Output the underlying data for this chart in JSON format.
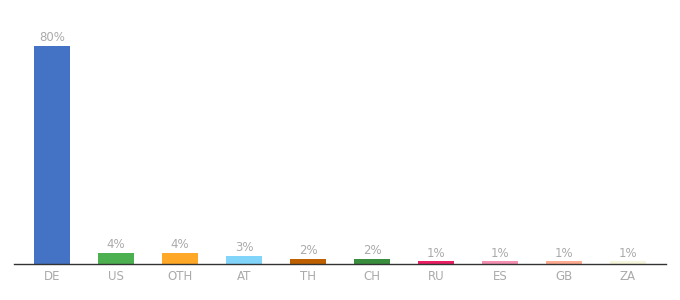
{
  "categories": [
    "DE",
    "US",
    "OTH",
    "AT",
    "TH",
    "CH",
    "RU",
    "ES",
    "GB",
    "ZA"
  ],
  "values": [
    80,
    4,
    4,
    3,
    2,
    2,
    1,
    1,
    1,
    1
  ],
  "bar_colors": [
    "#4472C4",
    "#4CAF50",
    "#FFA726",
    "#81D4FA",
    "#BF6000",
    "#388E3C",
    "#E91E63",
    "#F48FB1",
    "#FFAB91",
    "#F5F5DC"
  ],
  "label_color": "#aaaaaa",
  "label_fontsize": 8.5,
  "tick_fontsize": 8.5,
  "background_color": "#ffffff",
  "ylim": [
    0,
    88
  ],
  "bar_width": 0.55,
  "figsize": [
    6.8,
    3.0
  ],
  "dpi": 100
}
